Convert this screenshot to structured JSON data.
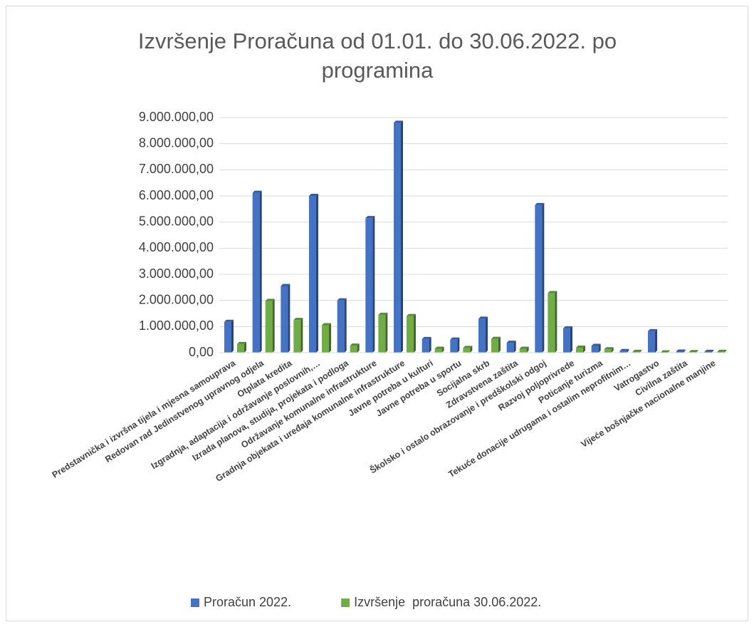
{
  "chart_data": {
    "type": "bar",
    "title": "Izvršenje Proračuna od 01.01. do 30.06.2022. po programina",
    "categories": [
      "Predstavnička i izvršna tijela i mjesna samouprava",
      "Redovan rad Jedinstvenog upravnog odjela",
      "Otplata kredita",
      "Izgradnja, adaptacija i održavanje poslovnih,…",
      "Izrada planova, studija, projekata i podloga",
      "Održavanje komunalne infrastrukture",
      "Gradnja objekata i uređaja komunalne infrastrukture",
      "Javne potreba u kulturi",
      "Javne potreba u sportu",
      "Socijalna skrb",
      "Zdravstvena zaštita",
      "Školsko i ostalo obrazovanje i predškolski odgoj",
      "Razvoj poljoprivrede",
      "Poticanje turizma",
      "Tekuće donacije udrugama i ostalim neprofitnim…",
      "Vatrogastvo",
      "Civilna zaštita",
      "Vijeće bošnjačke nacionalne manjine"
    ],
    "series": [
      {
        "name": "Proračun 2022.",
        "color": "#4472c4",
        "values": [
          1180000,
          6120000,
          2550000,
          6000000,
          2000000,
          5150000,
          8800000,
          520000,
          500000,
          1300000,
          380000,
          5650000,
          930000,
          260000,
          60000,
          820000,
          40000,
          30000
        ]
      },
      {
        "name": "Izvršenje  proračuna 30.06.2022.",
        "color": "#70ad47",
        "values": [
          330000,
          1980000,
          1250000,
          1050000,
          270000,
          1450000,
          1400000,
          150000,
          180000,
          530000,
          150000,
          2280000,
          190000,
          130000,
          30000,
          10000,
          20000,
          30000
        ]
      }
    ],
    "ylim": [
      0,
      9000000
    ],
    "yticks": [
      {
        "value": 0,
        "label": "0,00"
      },
      {
        "value": 1000000,
        "label": "1.000.000,00"
      },
      {
        "value": 2000000,
        "label": "2.000.000,00"
      },
      {
        "value": 3000000,
        "label": "3.000.000,00"
      },
      {
        "value": 4000000,
        "label": "4.000.000,00"
      },
      {
        "value": 5000000,
        "label": "5.000.000,00"
      },
      {
        "value": 6000000,
        "label": "6.000.000,00"
      },
      {
        "value": 7000000,
        "label": "7.000.000,00"
      },
      {
        "value": 8000000,
        "label": "8.000.000,00"
      },
      {
        "value": 9000000,
        "label": "9.000.000,00"
      }
    ],
    "grid": true,
    "legend": "bottom"
  }
}
